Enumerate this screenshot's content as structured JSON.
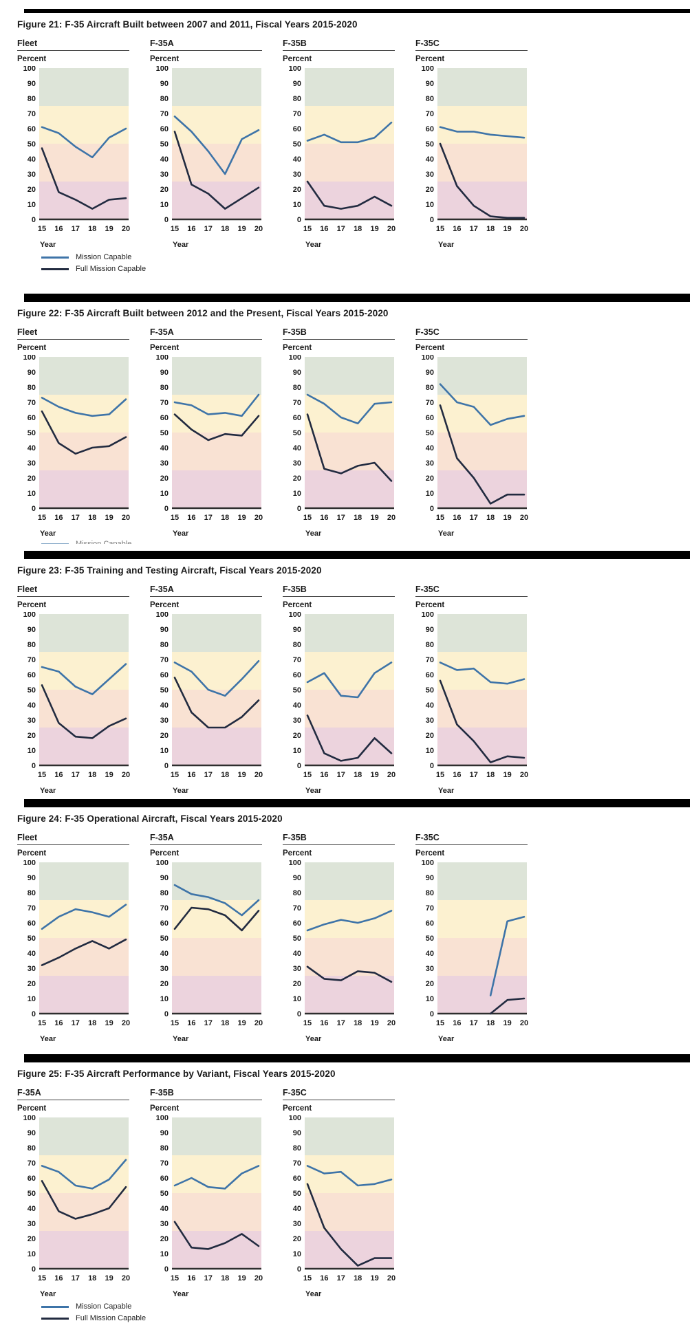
{
  "axis": {
    "y_label": "Percent",
    "x_label": "Year",
    "y_ticks": [
      100,
      90,
      80,
      70,
      60,
      50,
      40,
      30,
      20,
      10,
      0
    ],
    "y_min": 0,
    "y_max": 100,
    "categories": [
      "15",
      "16",
      "17",
      "18",
      "19",
      "20"
    ]
  },
  "colors": {
    "mission_capable": "#3e74a8",
    "full_mission_capable": "#222b40",
    "axis_line": "#2e2e2e",
    "separator": "#000000",
    "band_75_100": "#dde4d8",
    "band_50_75": "#fcf1d0",
    "band_25_50": "#f9e2d3",
    "band_0_25": "#ecd3dd"
  },
  "bands": [
    {
      "from": 75,
      "to": 100,
      "color_key": "band_75_100"
    },
    {
      "from": 50,
      "to": 75,
      "color_key": "band_50_75"
    },
    {
      "from": 25,
      "to": 50,
      "color_key": "band_25_50"
    },
    {
      "from": 0,
      "to": 25,
      "color_key": "band_0_25"
    }
  ],
  "legend": {
    "items": [
      {
        "label": "Mission Capable",
        "color_key": "mission_capable"
      },
      {
        "label": "Full Mission Capable",
        "color_key": "full_mission_capable"
      }
    ]
  },
  "chart_data": [
    {
      "type": "line",
      "title": "Figure 21: F-35 Aircraft Built between 2007 and 2011, Fiscal Years 2015-2020",
      "x": [
        "15",
        "16",
        "17",
        "18",
        "19",
        "20"
      ],
      "xlabel": "Year",
      "ylabel": "Percent",
      "ylim": [
        0,
        100
      ],
      "separator": "thin",
      "legend_visibility": "full",
      "panels": [
        {
          "label": "Fleet",
          "series": [
            {
              "name": "Mission Capable",
              "values": [
                61,
                57,
                48,
                41,
                54,
                60
              ]
            },
            {
              "name": "Full Mission Capable",
              "values": [
                47,
                18,
                13,
                7,
                13,
                14
              ]
            }
          ]
        },
        {
          "label": "F-35A",
          "series": [
            {
              "name": "Mission Capable",
              "values": [
                68,
                58,
                45,
                30,
                53,
                59
              ]
            },
            {
              "name": "Full Mission Capable",
              "values": [
                58,
                23,
                17,
                7,
                14,
                21
              ]
            }
          ]
        },
        {
          "label": "F-35B",
          "series": [
            {
              "name": "Mission Capable",
              "values": [
                52,
                56,
                51,
                51,
                54,
                64
              ]
            },
            {
              "name": "Full Mission Capable",
              "values": [
                25,
                9,
                7,
                9,
                15,
                9
              ]
            }
          ]
        },
        {
          "label": "F-35C",
          "series": [
            {
              "name": "Mission Capable",
              "values": [
                61,
                58,
                58,
                56,
                55,
                54
              ]
            },
            {
              "name": "Full Mission Capable",
              "values": [
                50,
                22,
                9,
                2,
                1,
                1
              ]
            }
          ]
        }
      ]
    },
    {
      "type": "line",
      "title": "Figure 22: F-35 Aircraft Built between 2012 and the Present, Fiscal Years 2015-2020",
      "x": [
        "15",
        "16",
        "17",
        "18",
        "19",
        "20"
      ],
      "xlabel": "Year",
      "ylabel": "Percent",
      "ylim": [
        0,
        100
      ],
      "separator": "thick",
      "legend_visibility": "clipped",
      "panels": [
        {
          "label": "Fleet",
          "series": [
            {
              "name": "Mission Capable",
              "values": [
                73,
                67,
                63,
                61,
                62,
                72
              ]
            },
            {
              "name": "Full Mission Capable",
              "values": [
                64,
                43,
                36,
                40,
                41,
                47
              ]
            }
          ]
        },
        {
          "label": "F-35A",
          "series": [
            {
              "name": "Mission Capable",
              "values": [
                70,
                68,
                62,
                63,
                61,
                75
              ]
            },
            {
              "name": "Full Mission Capable",
              "values": [
                62,
                52,
                45,
                49,
                48,
                61
              ]
            }
          ]
        },
        {
          "label": "F-35B",
          "series": [
            {
              "name": "Mission Capable",
              "values": [
                75,
                69,
                60,
                56,
                69,
                70
              ]
            },
            {
              "name": "Full Mission Capable",
              "values": [
                62,
                26,
                23,
                28,
                30,
                18
              ]
            }
          ]
        },
        {
          "label": "F-35C",
          "series": [
            {
              "name": "Mission Capable",
              "values": [
                82,
                70,
                67,
                55,
                59,
                61
              ]
            },
            {
              "name": "Full Mission Capable",
              "values": [
                68,
                33,
                20,
                3,
                9,
                9
              ]
            }
          ]
        }
      ]
    },
    {
      "type": "line",
      "title": "Figure 23: F-35 Training and Testing Aircraft, Fiscal Years 2015-2020",
      "x": [
        "15",
        "16",
        "17",
        "18",
        "19",
        "20"
      ],
      "xlabel": "Year",
      "ylabel": "Percent",
      "ylim": [
        0,
        100
      ],
      "separator": "thick",
      "legend_visibility": "none",
      "panels": [
        {
          "label": "Fleet",
          "series": [
            {
              "name": "Mission Capable",
              "values": [
                65,
                62,
                52,
                47,
                57,
                67
              ]
            },
            {
              "name": "Full Mission Capable",
              "values": [
                53,
                28,
                19,
                18,
                26,
                31
              ]
            }
          ]
        },
        {
          "label": "F-35A",
          "series": [
            {
              "name": "Mission Capable",
              "values": [
                68,
                62,
                50,
                46,
                57,
                69
              ]
            },
            {
              "name": "Full Mission Capable",
              "values": [
                58,
                35,
                25,
                25,
                32,
                43
              ]
            }
          ]
        },
        {
          "label": "F-35B",
          "series": [
            {
              "name": "Mission Capable",
              "values": [
                55,
                61,
                46,
                45,
                61,
                68
              ]
            },
            {
              "name": "Full Mission Capable",
              "values": [
                33,
                8,
                3,
                5,
                18,
                8
              ]
            }
          ]
        },
        {
          "label": "F-35C",
          "series": [
            {
              "name": "Mission Capable",
              "values": [
                68,
                63,
                64,
                55,
                54,
                57
              ]
            },
            {
              "name": "Full Mission Capable",
              "values": [
                56,
                27,
                16,
                2,
                6,
                5
              ]
            }
          ]
        }
      ]
    },
    {
      "type": "line",
      "title": "Figure 24: F-35 Operational Aircraft, Fiscal Years 2015-2020",
      "x": [
        "15",
        "16",
        "17",
        "18",
        "19",
        "20"
      ],
      "xlabel": "Year",
      "ylabel": "Percent",
      "ylim": [
        0,
        100
      ],
      "separator": "thick",
      "legend_visibility": "none",
      "panels": [
        {
          "label": "Fleet",
          "series": [
            {
              "name": "Mission Capable",
              "values": [
                56,
                64,
                69,
                67,
                64,
                72
              ]
            },
            {
              "name": "Full Mission Capable",
              "values": [
                32,
                37,
                43,
                48,
                43,
                49
              ]
            }
          ]
        },
        {
          "label": "F-35A",
          "series": [
            {
              "name": "Mission Capable",
              "values": [
                85,
                79,
                77,
                73,
                65,
                75
              ]
            },
            {
              "name": "Full Mission Capable",
              "values": [
                56,
                70,
                69,
                65,
                55,
                68
              ]
            }
          ]
        },
        {
          "label": "F-35B",
          "series": [
            {
              "name": "Mission Capable",
              "values": [
                55,
                59,
                62,
                60,
                63,
                68
              ]
            },
            {
              "name": "Full Mission Capable",
              "values": [
                31,
                23,
                22,
                28,
                27,
                21
              ]
            }
          ]
        },
        {
          "label": "F-35C",
          "series": [
            {
              "name": "Mission Capable",
              "values": [
                null,
                null,
                null,
                12,
                61,
                64
              ]
            },
            {
              "name": "Full Mission Capable",
              "values": [
                null,
                null,
                null,
                0,
                9,
                10
              ]
            }
          ]
        }
      ]
    },
    {
      "type": "line",
      "title": "Figure 25: F-35 Aircraft Performance by Variant, Fiscal Years 2015-2020",
      "x": [
        "15",
        "16",
        "17",
        "18",
        "19",
        "20"
      ],
      "xlabel": "Year",
      "ylabel": "Percent",
      "ylim": [
        0,
        100
      ],
      "separator": "thick",
      "legend_visibility": "full",
      "panels": [
        {
          "label": "F-35A",
          "series": [
            {
              "name": "Mission Capable",
              "values": [
                68,
                64,
                55,
                53,
                59,
                72
              ]
            },
            {
              "name": "Full Mission Capable",
              "values": [
                58,
                38,
                33,
                36,
                40,
                54
              ]
            }
          ]
        },
        {
          "label": "F-35B",
          "series": [
            {
              "name": "Mission Capable",
              "values": [
                55,
                60,
                54,
                53,
                63,
                68
              ]
            },
            {
              "name": "Full Mission Capable",
              "values": [
                31,
                14,
                13,
                17,
                23,
                15
              ]
            }
          ]
        },
        {
          "label": "F-35C",
          "series": [
            {
              "name": "Mission Capable",
              "values": [
                68,
                63,
                64,
                55,
                56,
                59
              ]
            },
            {
              "name": "Full Mission Capable",
              "values": [
                56,
                27,
                13,
                2,
                7,
                7
              ]
            }
          ]
        }
      ]
    }
  ]
}
